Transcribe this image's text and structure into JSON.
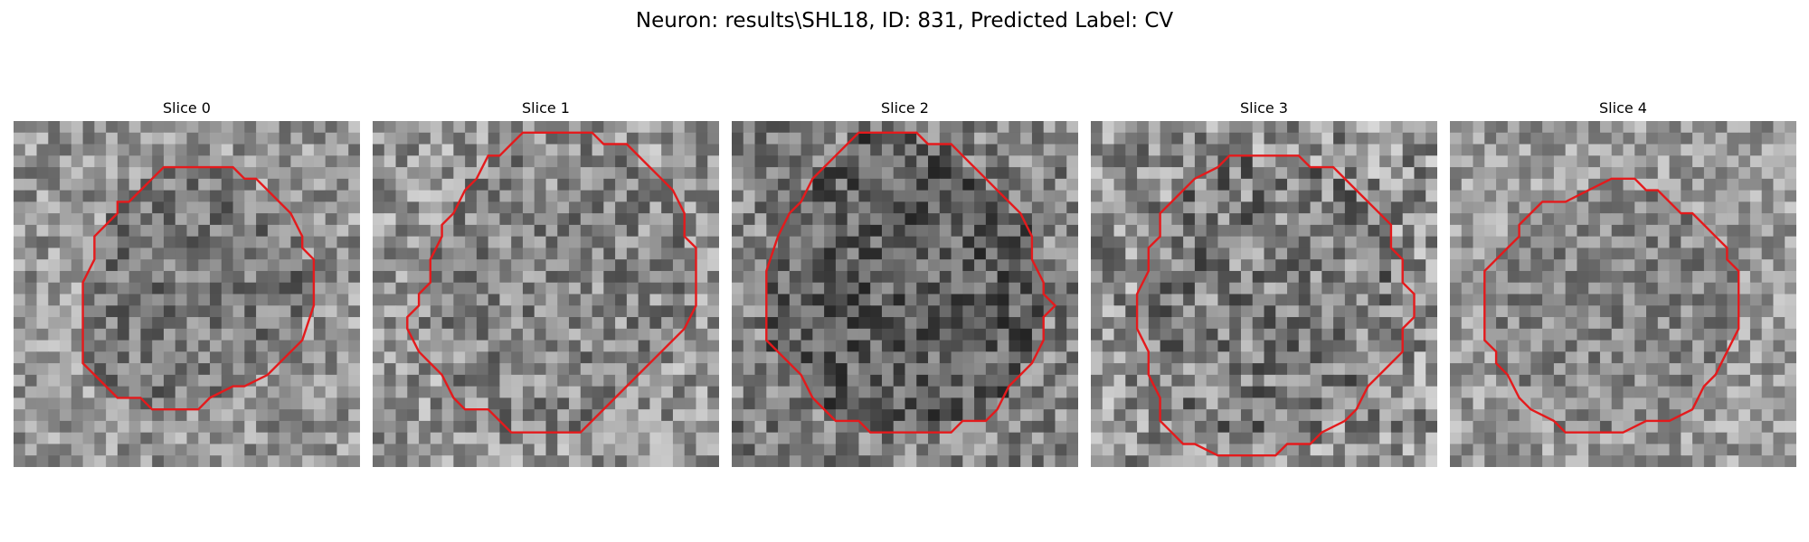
{
  "figure": {
    "title": "Neuron: results\\SHL18, ID: 831, Predicted Label: CV"
  },
  "panels": [
    {
      "title": "Slice 0",
      "seed": 11,
      "base": 150,
      "inside_base": 120,
      "range": 110,
      "contour": [
        [
          13,
          4
        ],
        [
          19,
          4
        ],
        [
          20,
          5
        ],
        [
          21,
          5
        ],
        [
          22,
          6
        ],
        [
          23,
          7
        ],
        [
          24,
          8
        ],
        [
          25,
          10
        ],
        [
          25,
          11
        ],
        [
          26,
          12
        ],
        [
          26,
          13
        ],
        [
          26,
          16
        ],
        [
          25,
          19
        ],
        [
          23,
          21
        ],
        [
          22,
          22
        ],
        [
          20,
          23
        ],
        [
          19,
          23
        ],
        [
          17,
          24
        ],
        [
          16,
          25
        ],
        [
          12,
          25
        ],
        [
          11,
          24
        ],
        [
          9,
          24
        ],
        [
          7,
          22
        ],
        [
          6,
          21
        ],
        [
          6,
          16
        ],
        [
          6,
          14
        ],
        [
          7,
          12
        ],
        [
          7,
          10
        ],
        [
          8,
          9
        ],
        [
          9,
          8
        ],
        [
          9,
          7
        ],
        [
          10,
          7
        ],
        [
          11,
          6
        ],
        [
          12,
          5
        ]
      ]
    },
    {
      "title": "Slice 1",
      "seed": 23,
      "base": 150,
      "inside_base": 135,
      "range": 120,
      "contour": [
        [
          13,
          1
        ],
        [
          19,
          1
        ],
        [
          20,
          2
        ],
        [
          22,
          2
        ],
        [
          24,
          4
        ],
        [
          25,
          5
        ],
        [
          26,
          6
        ],
        [
          27,
          8
        ],
        [
          27,
          10
        ],
        [
          28,
          11
        ],
        [
          28,
          12
        ],
        [
          28,
          14
        ],
        [
          28,
          16
        ],
        [
          27,
          18
        ],
        [
          25,
          20
        ],
        [
          23,
          22
        ],
        [
          21,
          24
        ],
        [
          19,
          26
        ],
        [
          18,
          27
        ],
        [
          12,
          27
        ],
        [
          10,
          25
        ],
        [
          8,
          25
        ],
        [
          7,
          24
        ],
        [
          6,
          22
        ],
        [
          5,
          21
        ],
        [
          4,
          20
        ],
        [
          3,
          18
        ],
        [
          3,
          17
        ],
        [
          4,
          16
        ],
        [
          4,
          15
        ],
        [
          5,
          14
        ],
        [
          5,
          12
        ],
        [
          6,
          10
        ],
        [
          6,
          9
        ],
        [
          7,
          8
        ],
        [
          8,
          6
        ],
        [
          9,
          5
        ],
        [
          10,
          3
        ],
        [
          11,
          3
        ],
        [
          12,
          2
        ]
      ]
    },
    {
      "title": "Slice 2",
      "seed": 37,
      "base": 130,
      "inside_base": 95,
      "range": 120,
      "contour": [
        [
          11,
          1
        ],
        [
          16,
          1
        ],
        [
          17,
          2
        ],
        [
          19,
          2
        ],
        [
          20,
          3
        ],
        [
          21,
          4
        ],
        [
          22,
          5
        ],
        [
          23,
          6
        ],
        [
          24,
          7
        ],
        [
          25,
          8
        ],
        [
          26,
          10
        ],
        [
          26,
          12
        ],
        [
          27,
          14
        ],
        [
          27,
          15
        ],
        [
          28,
          16
        ],
        [
          27,
          17
        ],
        [
          27,
          19
        ],
        [
          26,
          21
        ],
        [
          25,
          22
        ],
        [
          24,
          23
        ],
        [
          23,
          25
        ],
        [
          22,
          26
        ],
        [
          20,
          26
        ],
        [
          19,
          27
        ],
        [
          12,
          27
        ],
        [
          11,
          26
        ],
        [
          9,
          26
        ],
        [
          7,
          24
        ],
        [
          6,
          22
        ],
        [
          5,
          21
        ],
        [
          3,
          19
        ],
        [
          3,
          13
        ],
        [
          4,
          10
        ],
        [
          5,
          8
        ],
        [
          6,
          7
        ],
        [
          7,
          5
        ],
        [
          8,
          4
        ],
        [
          9,
          3
        ],
        [
          10,
          2
        ]
      ]
    },
    {
      "title": "Slice 3",
      "seed": 51,
      "base": 145,
      "inside_base": 125,
      "range": 140,
      "contour": [
        [
          12,
          3
        ],
        [
          18,
          3
        ],
        [
          19,
          4
        ],
        [
          21,
          4
        ],
        [
          23,
          6
        ],
        [
          24,
          7
        ],
        [
          25,
          8
        ],
        [
          26,
          9
        ],
        [
          26,
          11
        ],
        [
          27,
          12
        ],
        [
          27,
          14
        ],
        [
          28,
          15
        ],
        [
          28,
          17
        ],
        [
          27,
          18
        ],
        [
          27,
          20
        ],
        [
          26,
          21
        ],
        [
          25,
          22
        ],
        [
          24,
          23
        ],
        [
          23,
          25
        ],
        [
          22,
          26
        ],
        [
          20,
          27
        ],
        [
          19,
          28
        ],
        [
          17,
          28
        ],
        [
          16,
          29
        ],
        [
          11,
          29
        ],
        [
          9,
          28
        ],
        [
          8,
          28
        ],
        [
          7,
          27
        ],
        [
          6,
          26
        ],
        [
          6,
          24
        ],
        [
          5,
          22
        ],
        [
          5,
          20
        ],
        [
          4,
          18
        ],
        [
          4,
          15
        ],
        [
          5,
          13
        ],
        [
          5,
          11
        ],
        [
          6,
          10
        ],
        [
          6,
          8
        ],
        [
          7,
          7
        ],
        [
          8,
          6
        ],
        [
          9,
          5
        ],
        [
          11,
          4
        ]
      ]
    },
    {
      "title": "Slice 4",
      "seed": 67,
      "base": 155,
      "inside_base": 135,
      "range": 100,
      "contour": [
        [
          12,
          6
        ],
        [
          14,
          5
        ],
        [
          16,
          5
        ],
        [
          17,
          6
        ],
        [
          18,
          6
        ],
        [
          19,
          7
        ],
        [
          20,
          8
        ],
        [
          21,
          8
        ],
        [
          22,
          9
        ],
        [
          23,
          10
        ],
        [
          24,
          11
        ],
        [
          24,
          12
        ],
        [
          25,
          13
        ],
        [
          25,
          18
        ],
        [
          24,
          20
        ],
        [
          23,
          22
        ],
        [
          22,
          23
        ],
        [
          21,
          25
        ],
        [
          19,
          26
        ],
        [
          17,
          26
        ],
        [
          15,
          27
        ],
        [
          10,
          27
        ],
        [
          9,
          26
        ],
        [
          7,
          25
        ],
        [
          6,
          24
        ],
        [
          5,
          22
        ],
        [
          4,
          21
        ],
        [
          4,
          20
        ],
        [
          3,
          19
        ],
        [
          3,
          13
        ],
        [
          4,
          12
        ],
        [
          5,
          11
        ],
        [
          6,
          10
        ],
        [
          6,
          9
        ],
        [
          7,
          8
        ],
        [
          8,
          7
        ],
        [
          10,
          7
        ]
      ]
    }
  ]
}
